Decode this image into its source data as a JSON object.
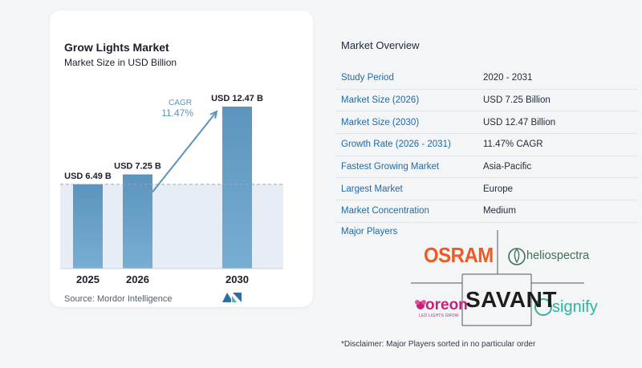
{
  "chart_data": {
    "type": "bar",
    "title": "Grow Lights Market",
    "subtitle": "Market Size in USD Billion",
    "categories": [
      "2025",
      "2026",
      "2030"
    ],
    "values": [
      6.49,
      7.25,
      12.47
    ],
    "value_labels": [
      "USD 6.49 B",
      "USD 7.25 B",
      "USD 12.47 B"
    ],
    "ylim": [
      0,
      12.47
    ],
    "cagr_label": "CAGR",
    "cagr_value": "11.47%",
    "source": "Source:  Mordor Intelligence",
    "colors": {
      "bar": "#5b94be",
      "bar_light": "#79aed3",
      "band": "#e6edf5",
      "arrow": "#5b94be",
      "cagr": "#5b94be"
    }
  },
  "overview": {
    "title": "Market Overview",
    "rows": [
      {
        "key": "Study Period",
        "value": "2020 - 2031"
      },
      {
        "key": "Market Size (2026)",
        "value": "USD 7.25 Billion"
      },
      {
        "key": "Market Size (2030)",
        "value": "USD 12.47 Billion"
      },
      {
        "key": "Growth Rate (2026 - 2031)",
        "value": "11.47% CAGR"
      },
      {
        "key": "Fastest Growing Market",
        "value": "Asia-Pacific"
      },
      {
        "key": "Largest Market",
        "value": "Europe"
      },
      {
        "key": "Market Concentration",
        "value": "Medium"
      }
    ]
  },
  "players": {
    "title": "Major Players",
    "logos": [
      "OSRAM",
      "heliospectra",
      "SAVANT",
      "oreon",
      "LED LIGHTS GROW",
      "signify"
    ],
    "disclaimer": "*Disclaimer: Major Players sorted in no particular order"
  }
}
